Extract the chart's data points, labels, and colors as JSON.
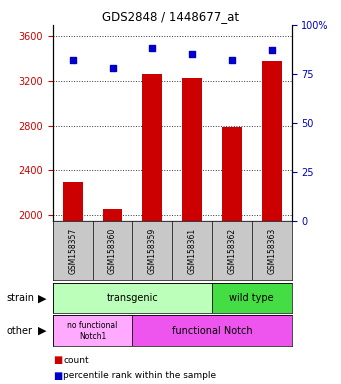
{
  "title": "GDS2848 / 1448677_at",
  "samples": [
    "GSM158357",
    "GSM158360",
    "GSM158359",
    "GSM158361",
    "GSM158362",
    "GSM158363"
  ],
  "counts": [
    2300,
    2055,
    3260,
    3230,
    2790,
    3380
  ],
  "percentiles": [
    82,
    78,
    88,
    85,
    82,
    87
  ],
  "ylim_left": [
    1950,
    3700
  ],
  "ylim_right": [
    0,
    100
  ],
  "yticks_left": [
    2000,
    2400,
    2800,
    3200,
    3600
  ],
  "yticks_right": [
    0,
    25,
    50,
    75,
    100
  ],
  "bar_color": "#cc0000",
  "dot_color": "#0000cc",
  "bar_width": 0.5,
  "transgenic_color": "#bbffbb",
  "wildtype_color": "#44dd44",
  "no_functional_color": "#ffaaff",
  "functional_color": "#ee55ee",
  "tick_label_color_left": "#cc0000",
  "tick_label_color_right": "#0000bb",
  "background_color": "#ffffff",
  "plot_bg_color": "#ffffff",
  "sample_box_color": "#c8c8c8",
  "legend_count_label": "count",
  "legend_pct_label": "percentile rank within the sample"
}
